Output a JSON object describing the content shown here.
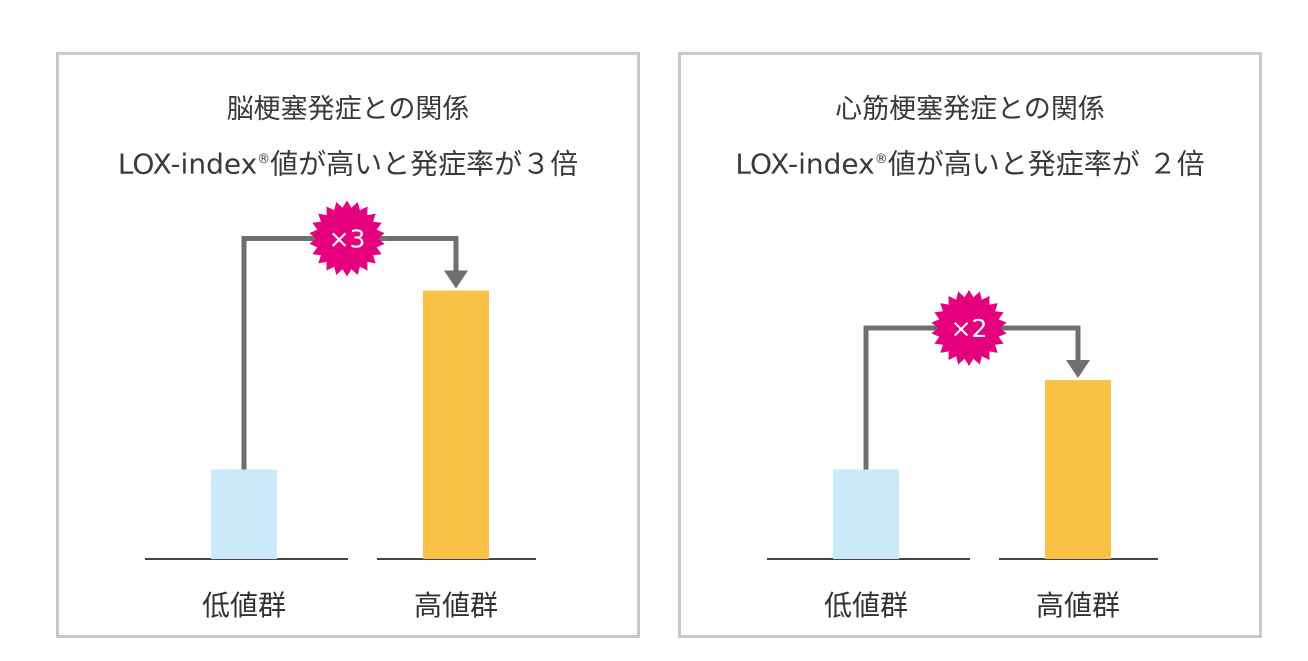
{
  "colors": {
    "low_bar": "#cbeaf9",
    "high_bar": "#f9c247",
    "arrow": "#6f6f6f",
    "badge": "#e6007e",
    "baseline": "#444444",
    "border": "#c8c8c8"
  },
  "chart_data": [
    {
      "type": "bar",
      "title": "脳梗塞発症との関係",
      "subtitle_pre": "LOX-index",
      "subtitle_reg": "®",
      "subtitle_post": "値が高いと発症率が３倍",
      "categories": [
        "低値群",
        "高値群"
      ],
      "values": [
        1,
        3
      ],
      "multiplier_label": "×3",
      "ylim": [
        0,
        3.6
      ]
    },
    {
      "type": "bar",
      "title": "心筋梗塞発症との関係",
      "subtitle_pre": "LOX-index",
      "subtitle_reg": "®",
      "subtitle_post": "値が高いと発症率が ２倍",
      "categories": [
        "低値群",
        "高値群"
      ],
      "values": [
        1,
        2
      ],
      "multiplier_label": "×2",
      "ylim": [
        0,
        3.6
      ]
    }
  ]
}
